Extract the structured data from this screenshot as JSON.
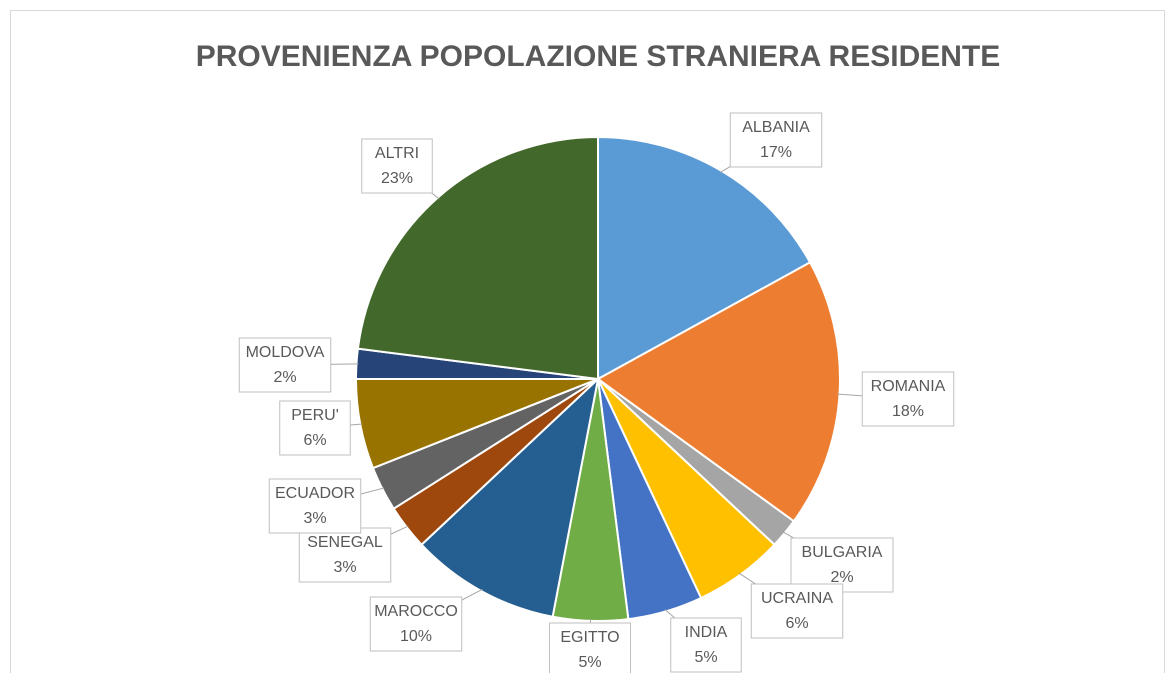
{
  "chart_data": {
    "type": "pie",
    "title": "PROVENIENZA POPOLAZIONE STRANIERA RESIDENTE",
    "categories": [
      "ALBANIA",
      "ROMANIA",
      "BULGARIA",
      "UCRAINA",
      "INDIA",
      "EGITTO",
      "MAROCCO",
      "SENEGAL",
      "ECUADOR",
      "PERU'",
      "MOLDOVA",
      "ALTRI"
    ],
    "values": [
      17,
      18,
      2,
      6,
      5,
      5,
      10,
      3,
      3,
      6,
      2,
      23
    ],
    "value_labels": [
      "17%",
      "18%",
      "2%",
      "6%",
      "5%",
      "5%",
      "10%",
      "3%",
      "3%",
      "6%",
      "2%",
      "23%"
    ],
    "colors": [
      "#5b9bd5",
      "#ed7d31",
      "#a5a5a5",
      "#ffc000",
      "#4472c4",
      "#70ad47",
      "#255e91",
      "#9e480e",
      "#636363",
      "#997300",
      "#264478",
      "#43682b"
    ]
  }
}
